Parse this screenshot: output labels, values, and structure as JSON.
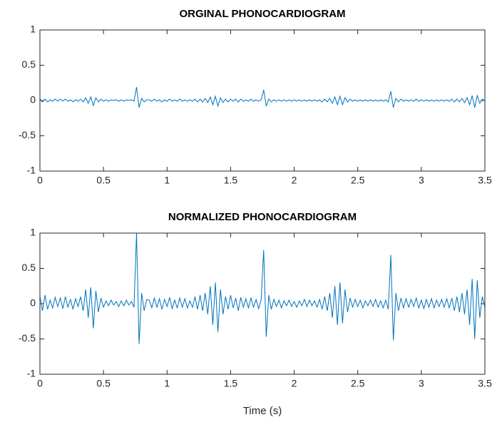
{
  "chart_data": [
    {
      "type": "line",
      "title": "ORGINAL PHONOCARDIOGRAM",
      "x": [
        0,
        0.02,
        0.04,
        0.06,
        0.08,
        0.1,
        0.12,
        0.14,
        0.16,
        0.18,
        0.2,
        0.22,
        0.24,
        0.26,
        0.28,
        0.3,
        0.32,
        0.34,
        0.36,
        0.38,
        0.4,
        0.42,
        0.44,
        0.46,
        0.48,
        0.5,
        0.52,
        0.54,
        0.56,
        0.58,
        0.6,
        0.62,
        0.64,
        0.66,
        0.68,
        0.7,
        0.72,
        0.74,
        0.76,
        0.78,
        0.8,
        0.82,
        0.84,
        0.86,
        0.88,
        0.9,
        0.92,
        0.94,
        0.96,
        0.98,
        1,
        1.02,
        1.04,
        1.06,
        1.08,
        1.1,
        1.12,
        1.14,
        1.16,
        1.18,
        1.2,
        1.22,
        1.24,
        1.26,
        1.28,
        1.3,
        1.32,
        1.34,
        1.36,
        1.38,
        1.4,
        1.42,
        1.44,
        1.46,
        1.48,
        1.5,
        1.52,
        1.54,
        1.56,
        1.58,
        1.6,
        1.62,
        1.64,
        1.66,
        1.68,
        1.7,
        1.72,
        1.74,
        1.76,
        1.78,
        1.8,
        1.82,
        1.84,
        1.86,
        1.88,
        1.9,
        1.92,
        1.94,
        1.96,
        1.98,
        2,
        2.02,
        2.04,
        2.06,
        2.08,
        2.1,
        2.12,
        2.14,
        2.16,
        2.18,
        2.2,
        2.22,
        2.24,
        2.26,
        2.28,
        2.3,
        2.32,
        2.34,
        2.36,
        2.38,
        2.4,
        2.42,
        2.44,
        2.46,
        2.48,
        2.5,
        2.52,
        2.54,
        2.56,
        2.58,
        2.6,
        2.62,
        2.64,
        2.66,
        2.68,
        2.7,
        2.72,
        2.74,
        2.76,
        2.78,
        2.8,
        2.82,
        2.84,
        2.86,
        2.88,
        2.9,
        2.92,
        2.94,
        2.96,
        2.98,
        3,
        3.02,
        3.04,
        3.06,
        3.08,
        3.1,
        3.12,
        3.14,
        3.16,
        3.18,
        3.2,
        3.22,
        3.24,
        3.26,
        3.28,
        3.3,
        3.32,
        3.34,
        3.36,
        3.38,
        3.4,
        3.42,
        3.44,
        3.46,
        3.48,
        3.5
      ],
      "series": [
        {
          "color": "#0072bd",
          "values": [
            0.02,
            -0.02,
            0.02,
            -0.02,
            0.01,
            -0.01,
            0.02,
            -0.01,
            0.02,
            -0.01,
            0.02,
            -0.01,
            0.01,
            -0.02,
            0.01,
            -0.01,
            0.02,
            -0.02,
            0.04,
            -0.04,
            0.05,
            -0.07,
            0.04,
            -0.02,
            0.02,
            -0.01,
            0.01,
            -0.01,
            0.01,
            0,
            0.01,
            -0.01,
            0.01,
            -0.01,
            0.01,
            0,
            0.01,
            -0.01,
            0.19,
            -0.1,
            0.03,
            -0.02,
            0.01,
            0.01,
            -0.01,
            0.02,
            -0.01,
            0.01,
            -0.02,
            0.01,
            -0.01,
            0.02,
            -0.01,
            0.01,
            -0.01,
            0.02,
            -0.01,
            0.01,
            -0.01,
            0.01,
            -0.01,
            0.02,
            -0.02,
            0.02,
            -0.02,
            0.03,
            -0.03,
            0.05,
            -0.06,
            0.06,
            -0.08,
            0.04,
            -0.03,
            0.02,
            -0.02,
            0.02,
            -0.01,
            0.02,
            -0.02,
            0.02,
            -0.01,
            0.01,
            -0.01,
            0.02,
            -0.01,
            0.01,
            -0.01,
            0.01,
            0.15,
            -0.08,
            0.02,
            -0.02,
            0.01,
            -0.01,
            0.01,
            -0.01,
            0.01,
            -0.01,
            0.01,
            -0.01,
            0.01,
            -0.01,
            0.01,
            -0.01,
            0.01,
            -0.01,
            0.01,
            -0.01,
            0.01,
            -0.01,
            0.01,
            -0.02,
            0.02,
            -0.02,
            0.03,
            -0.04,
            0.05,
            -0.06,
            0.06,
            -0.06,
            0.04,
            -0.02,
            0.02,
            -0.01,
            0.01,
            -0.01,
            0.01,
            -0.01,
            0.01,
            -0.01,
            0.01,
            -0.01,
            0.01,
            -0.01,
            0.01,
            -0.01,
            0.01,
            -0.02,
            0.13,
            -0.1,
            0.03,
            -0.02,
            0.02,
            -0.01,
            0.01,
            -0.01,
            0.01,
            -0.01,
            0.02,
            -0.01,
            0.01,
            -0.01,
            0.01,
            -0.01,
            0.01,
            -0.01,
            0.01,
            -0.01,
            0.01,
            -0.01,
            0.01,
            -0.01,
            0.02,
            -0.02,
            0.02,
            -0.02,
            0.03,
            -0.03,
            0.04,
            -0.06,
            0.07,
            -0.1,
            0.07,
            -0.04,
            0.02,
            -0.01
          ]
        }
      ],
      "xlim": [
        0,
        3.5
      ],
      "xticks": [
        0,
        0.5,
        1,
        1.5,
        2,
        2.5,
        3,
        3.5
      ],
      "ylim": [
        -1,
        1
      ],
      "yticks": [
        -1,
        -0.5,
        0,
        0.5,
        1
      ]
    },
    {
      "type": "line",
      "title": "NORMALIZED PHONOCARDIOGRAM",
      "xlabel": "Time (s)",
      "x": [
        0,
        0.02,
        0.04,
        0.06,
        0.08,
        0.1,
        0.12,
        0.14,
        0.16,
        0.18,
        0.2,
        0.22,
        0.24,
        0.26,
        0.28,
        0.3,
        0.32,
        0.34,
        0.36,
        0.38,
        0.4,
        0.42,
        0.44,
        0.46,
        0.48,
        0.5,
        0.52,
        0.54,
        0.56,
        0.58,
        0.6,
        0.62,
        0.64,
        0.66,
        0.68,
        0.7,
        0.72,
        0.74,
        0.76,
        0.78,
        0.8,
        0.82,
        0.84,
        0.86,
        0.88,
        0.9,
        0.92,
        0.94,
        0.96,
        0.98,
        1,
        1.02,
        1.04,
        1.06,
        1.08,
        1.1,
        1.12,
        1.14,
        1.16,
        1.18,
        1.2,
        1.22,
        1.24,
        1.26,
        1.28,
        1.3,
        1.32,
        1.34,
        1.36,
        1.38,
        1.4,
        1.42,
        1.44,
        1.46,
        1.48,
        1.5,
        1.52,
        1.54,
        1.56,
        1.58,
        1.6,
        1.62,
        1.64,
        1.66,
        1.68,
        1.7,
        1.72,
        1.74,
        1.76,
        1.78,
        1.8,
        1.82,
        1.84,
        1.86,
        1.88,
        1.9,
        1.92,
        1.94,
        1.96,
        1.98,
        2,
        2.02,
        2.04,
        2.06,
        2.08,
        2.1,
        2.12,
        2.14,
        2.16,
        2.18,
        2.2,
        2.22,
        2.24,
        2.26,
        2.28,
        2.3,
        2.32,
        2.34,
        2.36,
        2.38,
        2.4,
        2.42,
        2.44,
        2.46,
        2.48,
        2.5,
        2.52,
        2.54,
        2.56,
        2.58,
        2.6,
        2.62,
        2.64,
        2.66,
        2.68,
        2.7,
        2.72,
        2.74,
        2.76,
        2.78,
        2.8,
        2.82,
        2.84,
        2.86,
        2.88,
        2.9,
        2.92,
        2.94,
        2.96,
        2.98,
        3,
        3.02,
        3.04,
        3.06,
        3.08,
        3.1,
        3.12,
        3.14,
        3.16,
        3.18,
        3.2,
        3.22,
        3.24,
        3.26,
        3.28,
        3.3,
        3.32,
        3.34,
        3.36,
        3.38,
        3.4,
        3.42,
        3.44,
        3.46,
        3.48,
        3.5
      ],
      "series": [
        {
          "color": "#0072bd",
          "values": [
            0.1,
            -0.1,
            0.12,
            -0.08,
            0.05,
            -0.06,
            0.09,
            -0.04,
            0.08,
            -0.07,
            0.1,
            -0.05,
            0.06,
            -0.08,
            0.07,
            -0.04,
            0.1,
            -0.1,
            0.2,
            -0.2,
            0.23,
            -0.35,
            0.18,
            -0.12,
            0.08,
            -0.05,
            0.04,
            -0.03,
            0.05,
            -0.02,
            0.03,
            -0.04,
            0.04,
            -0.03,
            0.05,
            -0.02,
            0.03,
            -0.05,
            1.0,
            -0.57,
            0.15,
            -0.1,
            0.06,
            0.05,
            -0.06,
            0.08,
            -0.05,
            0.07,
            -0.08,
            0.06,
            -0.04,
            0.09,
            -0.07,
            0.05,
            -0.06,
            0.08,
            -0.05,
            0.07,
            -0.06,
            0.04,
            -0.05,
            0.1,
            -0.08,
            0.12,
            -0.1,
            0.15,
            -0.15,
            0.25,
            -0.3,
            0.3,
            -0.4,
            0.2,
            -0.15,
            0.1,
            -0.08,
            0.12,
            -0.06,
            0.08,
            -0.1,
            0.09,
            -0.05,
            0.07,
            -0.06,
            0.08,
            -0.05,
            0.06,
            -0.07,
            0.05,
            0.76,
            -0.47,
            0.12,
            -0.08,
            0.06,
            -0.04,
            0.05,
            -0.06,
            0.04,
            -0.03,
            0.05,
            -0.04,
            0.03,
            -0.05,
            0.04,
            -0.03,
            0.06,
            -0.04,
            0.05,
            -0.03,
            0.04,
            -0.05,
            0.06,
            -0.08,
            0.1,
            -0.1,
            0.15,
            -0.2,
            0.25,
            -0.3,
            0.3,
            -0.28,
            0.2,
            -0.12,
            0.08,
            -0.05,
            0.06,
            -0.04,
            0.05,
            -0.06,
            0.04,
            -0.03,
            0.05,
            -0.04,
            0.06,
            -0.05,
            0.04,
            -0.06,
            0.05,
            -0.08,
            0.69,
            -0.52,
            0.15,
            -0.1,
            0.08,
            -0.06,
            0.07,
            -0.05,
            0.06,
            -0.04,
            0.08,
            -0.06,
            0.05,
            -0.07,
            0.06,
            -0.05,
            0.07,
            -0.06,
            0.05,
            -0.04,
            0.06,
            -0.05,
            0.07,
            -0.06,
            0.08,
            -0.1,
            0.1,
            -0.12,
            0.15,
            -0.15,
            0.2,
            -0.3,
            0.35,
            -0.5,
            0.33,
            -0.2,
            0.1,
            -0.05
          ]
        }
      ],
      "xlim": [
        0,
        3.5
      ],
      "xticks": [
        0,
        0.5,
        1,
        1.5,
        2,
        2.5,
        3,
        3.5
      ],
      "ylim": [
        -1,
        1
      ],
      "yticks": [
        -1,
        -0.5,
        0,
        0.5,
        1
      ]
    }
  ]
}
